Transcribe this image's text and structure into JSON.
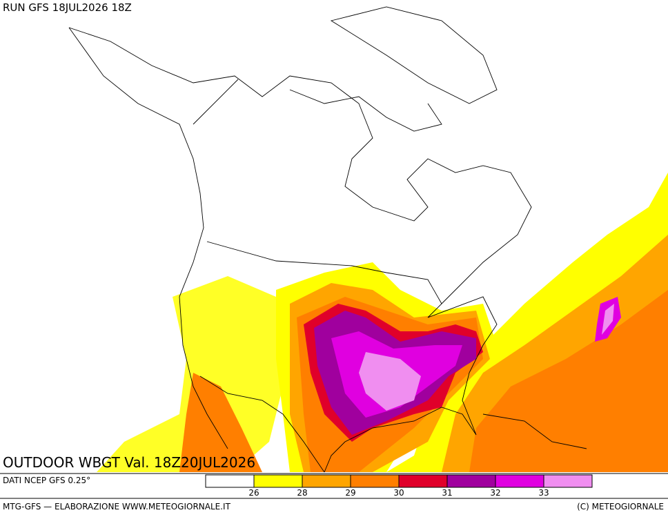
{
  "header": {
    "run": "RUN GFS 18JUL2026 18Z"
  },
  "map": {
    "title": "OUTDOOR WBGT Val. 18Z20JUL2026"
  },
  "legend": {
    "source": "DATI NCEP GFS 0.25°",
    "colors": [
      "#ffffff",
      "#ffff00",
      "#ffa500",
      "#ff7f00",
      "#e0002a",
      "#a0009e",
      "#e000e0",
      "#f08ef0"
    ],
    "thresholds": [
      26,
      28,
      29,
      30,
      31,
      32,
      33
    ]
  },
  "footer": {
    "credit": "MTG-GFS — ELABORAZIONE WWW.METEOGIORNALE.IT",
    "copyright": "(C) METEOGIORNALE"
  }
}
